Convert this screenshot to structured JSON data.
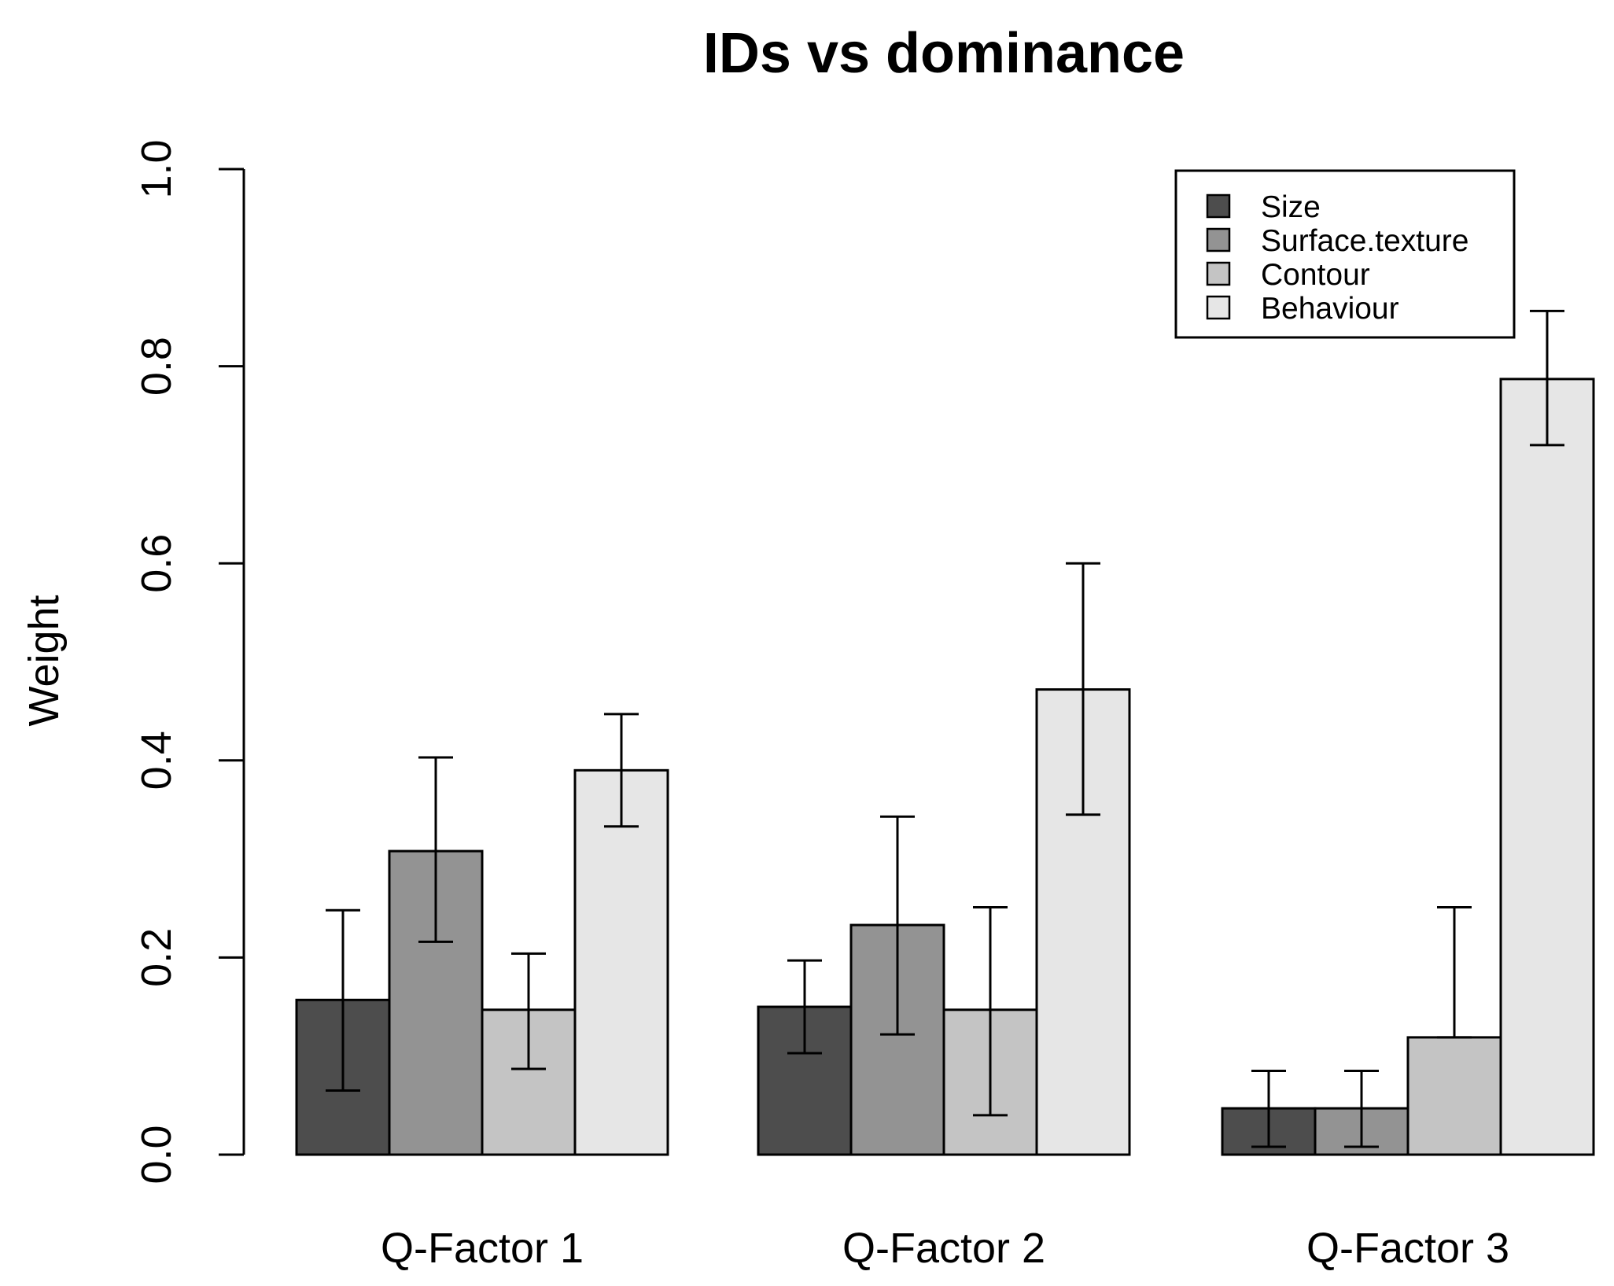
{
  "chart_data": {
    "type": "bar",
    "title": "IDs vs dominance",
    "xlabel": "",
    "ylabel": "Weight",
    "ylim": [
      0,
      1
    ],
    "yticks": [
      "0.0",
      "0.2",
      "0.4",
      "0.6",
      "0.8",
      "1.0"
    ],
    "categories": [
      "Q-Factor 1",
      "Q-Factor 2",
      "Q-Factor 3"
    ],
    "legend_position": "top-right",
    "series": [
      {
        "name": "Size",
        "color": "#4d4d4d",
        "values": [
          0.157,
          0.15,
          0.047
        ],
        "error_low": [
          0.065,
          0.103,
          0.008
        ],
        "error_high": [
          0.248,
          0.197,
          0.085
        ]
      },
      {
        "name": "Surface.texture",
        "color": "#939393",
        "values": [
          0.308,
          0.233,
          0.047
        ],
        "error_low": [
          0.216,
          0.122,
          0.008
        ],
        "error_high": [
          0.403,
          0.343,
          0.085
        ]
      },
      {
        "name": "Contour",
        "color": "#c4c4c4",
        "values": [
          0.147,
          0.147,
          0.119
        ],
        "error_low": [
          0.087,
          0.04,
          0.119
        ],
        "error_high": [
          0.204,
          0.251,
          0.251
        ]
      },
      {
        "name": "Behaviour",
        "color": "#e6e6e6",
        "values": [
          0.39,
          0.472,
          0.787
        ],
        "error_low": [
          0.333,
          0.345,
          0.72
        ],
        "error_high": [
          0.447,
          0.6,
          0.856
        ]
      }
    ]
  }
}
